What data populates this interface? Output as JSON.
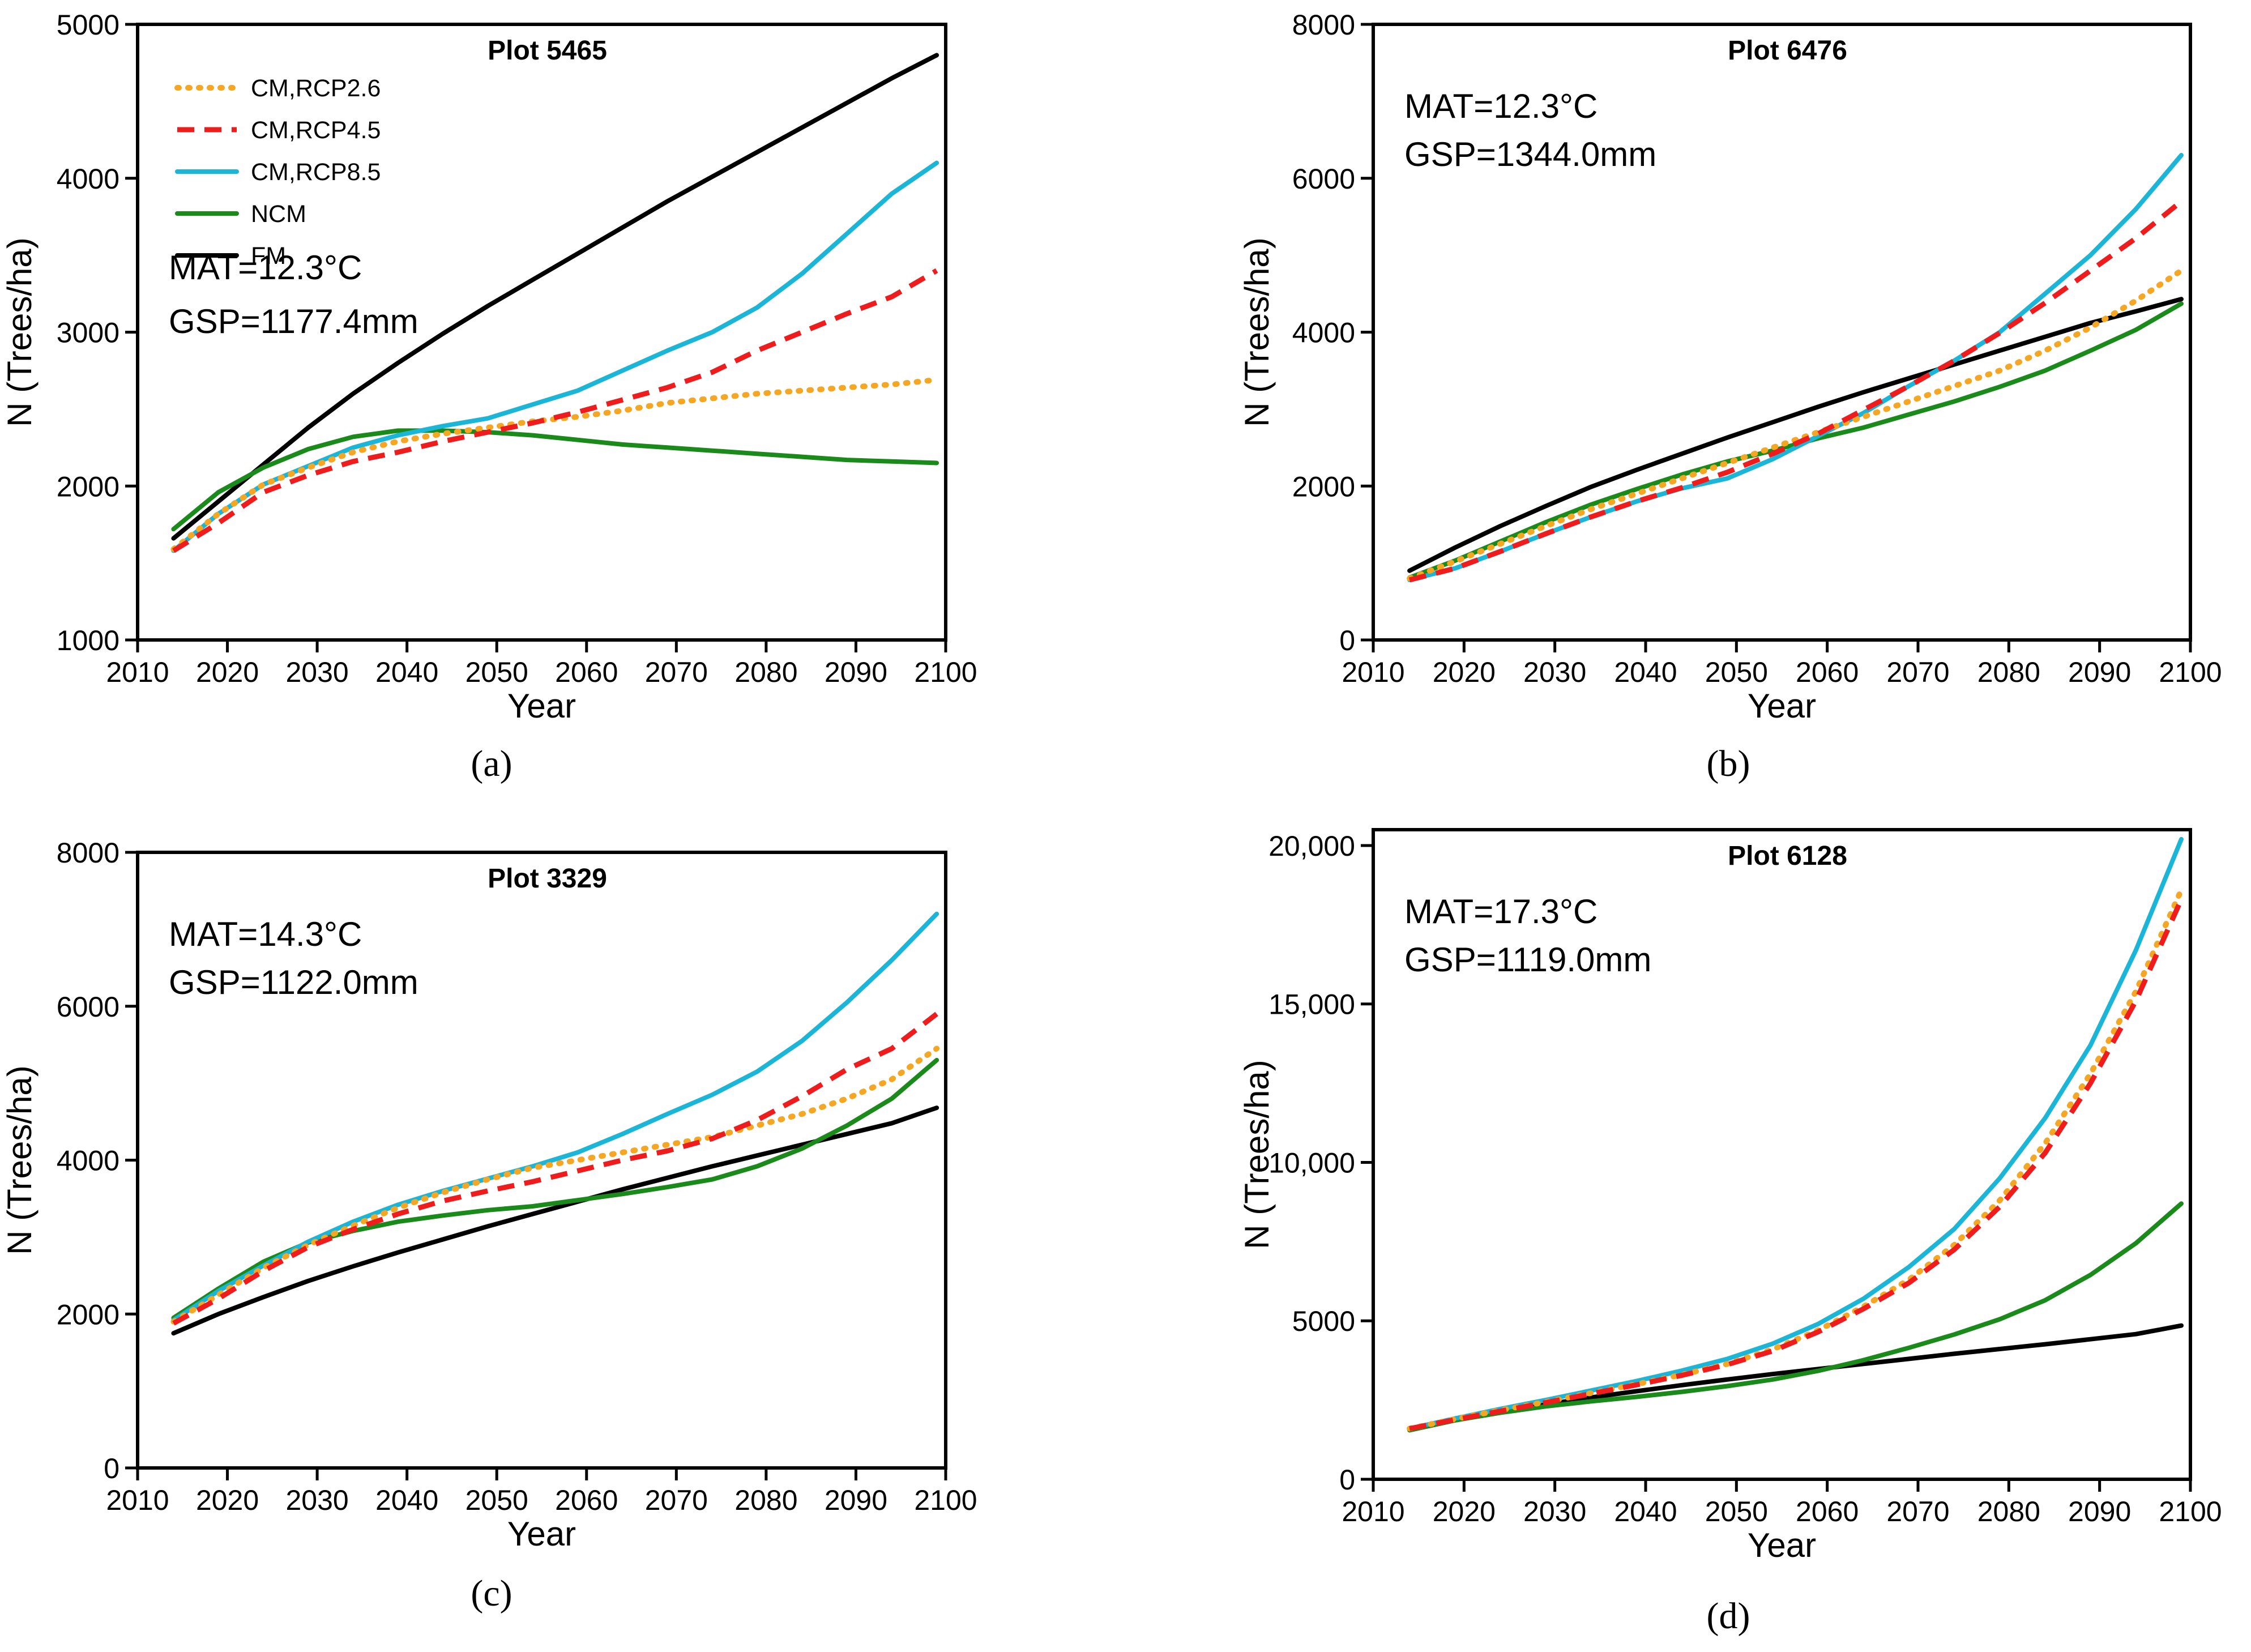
{
  "figure": {
    "background": "#ffffff",
    "legend": [
      {
        "key": "rcp26",
        "label": "CM,RCP2.6",
        "color": "#F5A623",
        "style": "dotted"
      },
      {
        "key": "rcp45",
        "label": "CM,RCP4.5",
        "color": "#EE1C1C",
        "style": "dashed"
      },
      {
        "key": "rcp85",
        "label": "CM,RCP8.5",
        "color": "#1BB5D8",
        "style": "solid"
      },
      {
        "key": "ncm",
        "label": "NCM",
        "color": "#1A8A1A",
        "style": "solid"
      },
      {
        "key": "fm",
        "label": "FM",
        "color": "#000000",
        "style": "solid"
      }
    ]
  },
  "chart_data": [
    {
      "type": "line",
      "panel": "a",
      "caption": "(a)",
      "title": "Plot 5465",
      "info": [
        "MAT=12.3°C",
        "GSP=1177.4mm"
      ],
      "xlabel": "Year",
      "ylabel": "N (Trees/ha)",
      "xlim": [
        2010,
        2100
      ],
      "ylim": [
        1000,
        5000
      ],
      "xticks": [
        2010,
        2020,
        2030,
        2040,
        2050,
        2060,
        2070,
        2080,
        2090,
        2100
      ],
      "yticks": [
        1000,
        2000,
        3000,
        4000,
        5000
      ],
      "ytick_labels": [
        "1000",
        "2000",
        "3000",
        "4000",
        "5000"
      ],
      "legend_visible": true,
      "x": [
        2014,
        2019,
        2024,
        2029,
        2034,
        2039,
        2044,
        2049,
        2054,
        2059,
        2064,
        2069,
        2074,
        2079,
        2084,
        2089,
        2094,
        2099
      ],
      "series": [
        {
          "key": "rcp26",
          "name": "CM,RCP2.6",
          "values": [
            1590,
            1820,
            2010,
            2120,
            2220,
            2290,
            2340,
            2380,
            2420,
            2450,
            2490,
            2540,
            2570,
            2600,
            2620,
            2640,
            2660,
            2690
          ]
        },
        {
          "key": "rcp45",
          "name": "CM,RCP4.5",
          "values": [
            1580,
            1760,
            1960,
            2070,
            2160,
            2220,
            2290,
            2350,
            2410,
            2480,
            2560,
            2640,
            2740,
            2880,
            3000,
            3120,
            3230,
            3400
          ]
        },
        {
          "key": "rcp85",
          "name": "CM,RCP8.5",
          "values": [
            1580,
            1820,
            2010,
            2130,
            2250,
            2330,
            2390,
            2440,
            2530,
            2620,
            2750,
            2880,
            3000,
            3160,
            3380,
            3640,
            3900,
            4100
          ]
        },
        {
          "key": "ncm",
          "name": "NCM",
          "values": [
            1720,
            1960,
            2120,
            2240,
            2320,
            2360,
            2360,
            2350,
            2330,
            2300,
            2270,
            2250,
            2230,
            2210,
            2190,
            2170,
            2160,
            2150
          ]
        },
        {
          "key": "fm",
          "name": "FM",
          "values": [
            1660,
            1900,
            2140,
            2380,
            2600,
            2800,
            2990,
            3170,
            3340,
            3510,
            3680,
            3850,
            4010,
            4170,
            4330,
            4490,
            4650,
            4800
          ]
        }
      ]
    },
    {
      "type": "line",
      "panel": "b",
      "caption": "(b)",
      "title": "Plot 6476",
      "info": [
        "MAT=12.3°C",
        "GSP=1344.0mm"
      ],
      "xlabel": "Year",
      "ylabel": "N (Trees/ha)",
      "xlim": [
        2010,
        2100
      ],
      "ylim": [
        0,
        8000
      ],
      "xticks": [
        2010,
        2020,
        2030,
        2040,
        2050,
        2060,
        2070,
        2080,
        2090,
        2100
      ],
      "yticks": [
        0,
        2000,
        4000,
        6000,
        8000
      ],
      "ytick_labels": [
        "0",
        "2000",
        "4000",
        "6000",
        "8000"
      ],
      "legend_visible": false,
      "x": [
        2014,
        2019,
        2024,
        2029,
        2034,
        2039,
        2044,
        2049,
        2054,
        2059,
        2064,
        2069,
        2074,
        2079,
        2084,
        2089,
        2094,
        2099
      ],
      "series": [
        {
          "key": "rcp26",
          "name": "CM,RCP2.6",
          "values": [
            800,
            1020,
            1250,
            1480,
            1700,
            1900,
            2100,
            2300,
            2500,
            2700,
            2900,
            3100,
            3300,
            3500,
            3760,
            4060,
            4410,
            4800
          ]
        },
        {
          "key": "rcp45",
          "name": "CM,RCP4.5",
          "values": [
            780,
            930,
            1150,
            1380,
            1600,
            1800,
            1980,
            2180,
            2420,
            2680,
            2990,
            3300,
            3630,
            3990,
            4380,
            4800,
            5220,
            5700
          ]
        },
        {
          "key": "rcp85",
          "name": "CM,RCP8.5",
          "values": [
            780,
            930,
            1150,
            1380,
            1600,
            1800,
            1970,
            2100,
            2350,
            2650,
            2950,
            3300,
            3630,
            4000,
            4500,
            5000,
            5600,
            6300
          ]
        },
        {
          "key": "ncm",
          "name": "NCM",
          "values": [
            810,
            1030,
            1280,
            1530,
            1760,
            1960,
            2150,
            2320,
            2460,
            2620,
            2760,
            2930,
            3100,
            3290,
            3500,
            3760,
            4030,
            4370
          ]
        },
        {
          "key": "fm",
          "name": "FM",
          "values": [
            900,
            1200,
            1480,
            1740,
            1990,
            2210,
            2420,
            2630,
            2830,
            3030,
            3220,
            3400,
            3580,
            3760,
            3940,
            4120,
            4270,
            4430
          ]
        }
      ]
    },
    {
      "type": "line",
      "panel": "c",
      "caption": "(c)",
      "title": "Plot 3329",
      "info": [
        "MAT=14.3°C",
        "GSP=1122.0mm"
      ],
      "xlabel": "Year",
      "ylabel": "N (Trees/ha)",
      "xlim": [
        2010,
        2100
      ],
      "ylim": [
        0,
        8000
      ],
      "xticks": [
        2010,
        2020,
        2030,
        2040,
        2050,
        2060,
        2070,
        2080,
        2090,
        2100
      ],
      "yticks": [
        0,
        2000,
        4000,
        6000,
        8000
      ],
      "ytick_labels": [
        "0",
        "2000",
        "4000",
        "6000",
        "8000"
      ],
      "legend_visible": false,
      "x": [
        2014,
        2019,
        2024,
        2029,
        2034,
        2039,
        2044,
        2049,
        2054,
        2059,
        2064,
        2069,
        2074,
        2079,
        2084,
        2089,
        2094,
        2099
      ],
      "series": [
        {
          "key": "rcp26",
          "name": "CM,RCP2.6",
          "values": [
            1900,
            2250,
            2600,
            2900,
            3150,
            3380,
            3580,
            3750,
            3900,
            4000,
            4100,
            4200,
            4300,
            4450,
            4600,
            4800,
            5050,
            5450
          ]
        },
        {
          "key": "rcp45",
          "name": "CM,RCP4.5",
          "values": [
            1880,
            2200,
            2560,
            2870,
            3100,
            3300,
            3470,
            3600,
            3720,
            3860,
            4000,
            4120,
            4280,
            4520,
            4830,
            5180,
            5450,
            5900
          ]
        },
        {
          "key": "rcp85",
          "name": "CM,RCP8.5",
          "values": [
            1920,
            2300,
            2630,
            2940,
            3200,
            3420,
            3600,
            3760,
            3920,
            4100,
            4340,
            4600,
            4850,
            5150,
            5550,
            6050,
            6600,
            7200
          ]
        },
        {
          "key": "ncm",
          "name": "NCM",
          "values": [
            1950,
            2330,
            2680,
            2930,
            3080,
            3200,
            3280,
            3350,
            3400,
            3480,
            3560,
            3650,
            3750,
            3920,
            4150,
            4450,
            4800,
            5300
          ]
        },
        {
          "key": "fm",
          "name": "FM",
          "values": [
            1750,
            2000,
            2220,
            2430,
            2620,
            2800,
            2970,
            3140,
            3300,
            3460,
            3620,
            3770,
            3920,
            4060,
            4200,
            4340,
            4480,
            4680
          ]
        }
      ]
    },
    {
      "type": "line",
      "panel": "d",
      "caption": "(d)",
      "title": "Plot 6128",
      "info": [
        "MAT=17.3°C",
        "GSP=1119.0mm"
      ],
      "xlabel": "Year",
      "ylabel": "N (Trees/ha)",
      "xlim": [
        2010,
        2100
      ],
      "ylim": [
        0,
        20500
      ],
      "xticks": [
        2010,
        2020,
        2030,
        2040,
        2050,
        2060,
        2070,
        2080,
        2090,
        2100
      ],
      "yticks": [
        0,
        5000,
        10000,
        15000,
        20000
      ],
      "ytick_labels": [
        "0",
        "5000",
        "10,000",
        "15,000",
        "20,000"
      ],
      "legend_visible": false,
      "x": [
        2014,
        2019,
        2024,
        2029,
        2034,
        2039,
        2044,
        2049,
        2054,
        2059,
        2064,
        2069,
        2074,
        2079,
        2084,
        2089,
        2094,
        2099
      ],
      "series": [
        {
          "key": "rcp26",
          "name": "CM,RCP2.6",
          "values": [
            1600,
            1900,
            2180,
            2440,
            2720,
            3000,
            3300,
            3640,
            4100,
            4700,
            5450,
            6300,
            7400,
            8800,
            10600,
            12800,
            15400,
            18600
          ]
        },
        {
          "key": "rcp45",
          "name": "CM,RCP4.5",
          "values": [
            1600,
            1880,
            2150,
            2420,
            2700,
            2980,
            3280,
            3620,
            4050,
            4650,
            5380,
            6200,
            7250,
            8600,
            10300,
            12500,
            15100,
            18300
          ]
        },
        {
          "key": "rcp85",
          "name": "CM,RCP8.5",
          "values": [
            1600,
            1920,
            2220,
            2500,
            2800,
            3100,
            3430,
            3800,
            4280,
            4900,
            5700,
            6700,
            7900,
            9500,
            11400,
            13700,
            16700,
            20200
          ]
        },
        {
          "key": "ncm",
          "name": "NCM",
          "values": [
            1550,
            1860,
            2100,
            2300,
            2460,
            2600,
            2760,
            2940,
            3150,
            3420,
            3760,
            4150,
            4570,
            5050,
            5650,
            6450,
            7450,
            8700
          ]
        },
        {
          "key": "fm",
          "name": "FM",
          "values": [
            1550,
            1860,
            2130,
            2360,
            2580,
            2780,
            2970,
            3150,
            3320,
            3480,
            3640,
            3800,
            3960,
            4110,
            4260,
            4420,
            4580,
            4850
          ]
        }
      ]
    }
  ]
}
